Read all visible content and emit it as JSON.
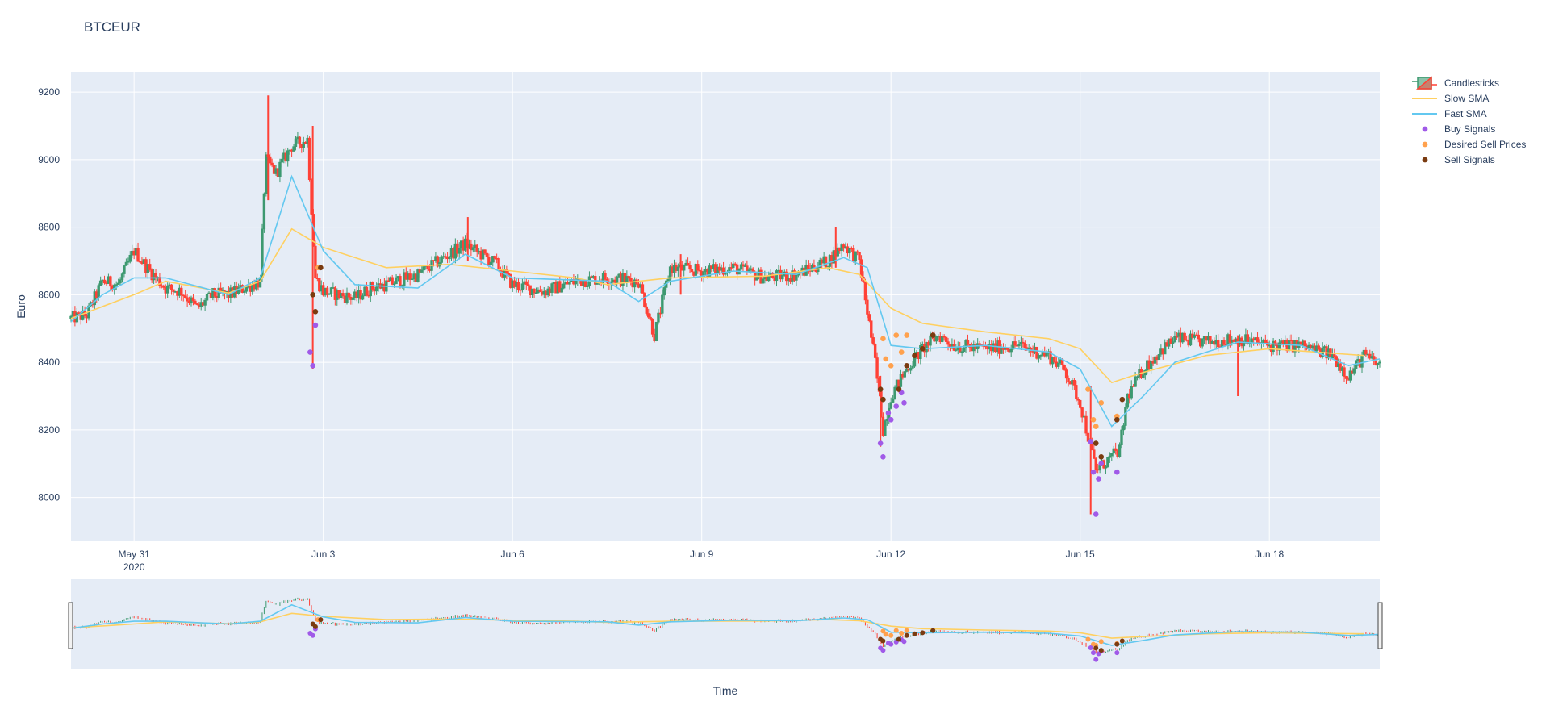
{
  "chart_data": {
    "type": "candlestick",
    "title": "BTCEUR",
    "xlabel": "Time",
    "ylabel": "Euro",
    "ylim": [
      7870,
      9260
    ],
    "xlim": [
      "2020-05-30T00:00",
      "2020-06-19T18:00"
    ],
    "grid": true,
    "legend_position": "top-right",
    "y_ticks": [
      8000,
      8200,
      8400,
      8600,
      8800,
      9000,
      9200
    ],
    "x_ticks": [
      {
        "date": "2020-05-31T00:00",
        "label": "May 31",
        "sublabel": "2020"
      },
      {
        "date": "2020-06-03T00:00",
        "label": "Jun 3",
        "sublabel": ""
      },
      {
        "date": "2020-06-06T00:00",
        "label": "Jun 6",
        "sublabel": ""
      },
      {
        "date": "2020-06-09T00:00",
        "label": "Jun 9",
        "sublabel": ""
      },
      {
        "date": "2020-06-12T00:00",
        "label": "Jun 12",
        "sublabel": ""
      },
      {
        "date": "2020-06-15T00:00",
        "label": "Jun 15",
        "sublabel": ""
      },
      {
        "date": "2020-06-18T00:00",
        "label": "Jun 18",
        "sublabel": ""
      }
    ],
    "colors": {
      "increasing": "#3d9970",
      "decreasing": "#ff4136",
      "slow_sma": "#ffd060",
      "fast_sma": "#63c8f0",
      "buy": "#a05ae8",
      "desired_sell": "#ffa14d",
      "sell": "#7a3b10",
      "plot_bg": "#e5ecf6",
      "grid": "#ffffff"
    },
    "legend": [
      {
        "name": "Candlesticks",
        "kind": "candle"
      },
      {
        "name": "Slow SMA",
        "kind": "line",
        "color": "#ffd060"
      },
      {
        "name": "Fast SMA",
        "kind": "line",
        "color": "#63c8f0"
      },
      {
        "name": "Buy Signals",
        "kind": "marker",
        "color": "#a05ae8"
      },
      {
        "name": "Desired Sell Prices",
        "kind": "marker",
        "color": "#ffa14d"
      },
      {
        "name": "Sell Signals",
        "kind": "marker",
        "color": "#7a3b10"
      }
    ],
    "price_path": [
      [
        "2020-05-30T00:00",
        8530
      ],
      [
        "2020-05-30T06:00",
        8540
      ],
      [
        "2020-05-30T12:00",
        8640
      ],
      [
        "2020-05-30T18:00",
        8630
      ],
      [
        "2020-05-31T00:00",
        8730
      ],
      [
        "2020-05-31T06:00",
        8670
      ],
      [
        "2020-05-31T12:00",
        8620
      ],
      [
        "2020-05-31T18:00",
        8610
      ],
      [
        "2020-06-01T00:00",
        8560
      ],
      [
        "2020-06-01T06:00",
        8600
      ],
      [
        "2020-06-01T12:00",
        8600
      ],
      [
        "2020-06-01T18:00",
        8620
      ],
      [
        "2020-06-02T00:00",
        8640
      ],
      [
        "2020-06-02T02:00",
        9000
      ],
      [
        "2020-06-02T06:00",
        8960
      ],
      [
        "2020-06-02T12:00",
        9040
      ],
      [
        "2020-06-02T18:00",
        9060
      ],
      [
        "2020-06-02T21:00",
        8650
      ],
      [
        "2020-06-03T00:00",
        8610
      ],
      [
        "2020-06-03T06:00",
        8600
      ],
      [
        "2020-06-03T12:00",
        8590
      ],
      [
        "2020-06-03T18:00",
        8620
      ],
      [
        "2020-06-04T00:00",
        8630
      ],
      [
        "2020-06-04T12:00",
        8660
      ],
      [
        "2020-06-05T00:00",
        8720
      ],
      [
        "2020-06-05T06:00",
        8750
      ],
      [
        "2020-06-05T12:00",
        8720
      ],
      [
        "2020-06-05T18:00",
        8690
      ],
      [
        "2020-06-06T00:00",
        8630
      ],
      [
        "2020-06-06T12:00",
        8610
      ],
      [
        "2020-06-07T00:00",
        8640
      ],
      [
        "2020-06-07T12:00",
        8650
      ],
      [
        "2020-06-08T00:00",
        8640
      ],
      [
        "2020-06-08T06:00",
        8480
      ],
      [
        "2020-06-08T12:00",
        8680
      ],
      [
        "2020-06-09T00:00",
        8670
      ],
      [
        "2020-06-09T12:00",
        8680
      ],
      [
        "2020-06-10T00:00",
        8650
      ],
      [
        "2020-06-10T12:00",
        8660
      ],
      [
        "2020-06-11T00:00",
        8700
      ],
      [
        "2020-06-11T06:00",
        8750
      ],
      [
        "2020-06-11T12:00",
        8700
      ],
      [
        "2020-06-11T18:00",
        8400
      ],
      [
        "2020-06-11T21:00",
        8200
      ],
      [
        "2020-06-12T00:00",
        8300
      ],
      [
        "2020-06-12T06:00",
        8380
      ],
      [
        "2020-06-12T12:00",
        8440
      ],
      [
        "2020-06-12T18:00",
        8480
      ],
      [
        "2020-06-13T00:00",
        8450
      ],
      [
        "2020-06-13T12:00",
        8440
      ],
      [
        "2020-06-14T00:00",
        8450
      ],
      [
        "2020-06-14T12:00",
        8420
      ],
      [
        "2020-06-14T18:00",
        8380
      ],
      [
        "2020-06-15T00:00",
        8280
      ],
      [
        "2020-06-15T06:00",
        8080
      ],
      [
        "2020-06-15T12:00",
        8120
      ],
      [
        "2020-06-15T15:00",
        8140
      ],
      [
        "2020-06-15T18:00",
        8300
      ],
      [
        "2020-06-16T00:00",
        8380
      ],
      [
        "2020-06-16T06:00",
        8430
      ],
      [
        "2020-06-16T12:00",
        8470
      ],
      [
        "2020-06-17T00:00",
        8460
      ],
      [
        "2020-06-17T12:00",
        8470
      ],
      [
        "2020-06-18T00:00",
        8450
      ],
      [
        "2020-06-18T12:00",
        8450
      ],
      [
        "2020-06-19T00:00",
        8420
      ],
      [
        "2020-06-19T06:00",
        8360
      ],
      [
        "2020-06-19T12:00",
        8420
      ],
      [
        "2020-06-19T18:00",
        8390
      ]
    ],
    "spikes": [
      [
        "2020-06-02T03:00",
        9190,
        8880
      ],
      [
        "2020-06-02T20:00",
        9100,
        8380
      ],
      [
        "2020-06-05T07:00",
        8830,
        8700
      ],
      [
        "2020-06-08T16:00",
        8720,
        8600
      ],
      [
        "2020-06-11T03:00",
        8800,
        8680
      ],
      [
        "2020-06-11T20:00",
        8360,
        8150
      ],
      [
        "2020-06-15T04:00",
        8330,
        7950
      ],
      [
        "2020-06-17T12:00",
        8480,
        8300
      ]
    ],
    "slow_sma": [
      [
        "2020-05-30T00:00",
        8530
      ],
      [
        "2020-05-31T00:00",
        8600
      ],
      [
        "2020-05-31T12:00",
        8640
      ],
      [
        "2020-06-01T12:00",
        8605
      ],
      [
        "2020-06-02T00:00",
        8640
      ],
      [
        "2020-06-02T12:00",
        8795
      ],
      [
        "2020-06-03T00:00",
        8740
      ],
      [
        "2020-06-04T00:00",
        8680
      ],
      [
        "2020-06-05T00:00",
        8690
      ],
      [
        "2020-06-06T00:00",
        8670
      ],
      [
        "2020-06-07T00:00",
        8650
      ],
      [
        "2020-06-07T12:00",
        8630
      ],
      [
        "2020-06-08T12:00",
        8650
      ],
      [
        "2020-06-10T00:00",
        8655
      ],
      [
        "2020-06-11T00:00",
        8680
      ],
      [
        "2020-06-11T12:00",
        8660
      ],
      [
        "2020-06-12T00:00",
        8560
      ],
      [
        "2020-06-12T12:00",
        8515
      ],
      [
        "2020-06-13T12:00",
        8490
      ],
      [
        "2020-06-14T12:00",
        8470
      ],
      [
        "2020-06-15T00:00",
        8440
      ],
      [
        "2020-06-15T12:00",
        8340
      ],
      [
        "2020-06-16T00:00",
        8370
      ],
      [
        "2020-06-17T00:00",
        8420
      ],
      [
        "2020-06-18T00:00",
        8440
      ],
      [
        "2020-06-19T12:00",
        8420
      ]
    ],
    "fast_sma": [
      [
        "2020-05-30T00:00",
        8520
      ],
      [
        "2020-05-30T12:00",
        8600
      ],
      [
        "2020-05-31T00:00",
        8650
      ],
      [
        "2020-05-31T12:00",
        8650
      ],
      [
        "2020-06-01T12:00",
        8600
      ],
      [
        "2020-06-02T00:00",
        8650
      ],
      [
        "2020-06-02T12:00",
        8950
      ],
      [
        "2020-06-03T00:00",
        8730
      ],
      [
        "2020-06-03T12:00",
        8630
      ],
      [
        "2020-06-04T12:00",
        8620
      ],
      [
        "2020-06-05T06:00",
        8720
      ],
      [
        "2020-06-06T00:00",
        8650
      ],
      [
        "2020-06-07T12:00",
        8640
      ],
      [
        "2020-06-08T00:00",
        8580
      ],
      [
        "2020-06-08T12:00",
        8640
      ],
      [
        "2020-06-09T12:00",
        8670
      ],
      [
        "2020-06-10T12:00",
        8660
      ],
      [
        "2020-06-11T06:00",
        8710
      ],
      [
        "2020-06-11T15:00",
        8680
      ],
      [
        "2020-06-12T00:00",
        8450
      ],
      [
        "2020-06-12T12:00",
        8440
      ],
      [
        "2020-06-13T12:00",
        8450
      ],
      [
        "2020-06-14T12:00",
        8430
      ],
      [
        "2020-06-15T00:00",
        8380
      ],
      [
        "2020-06-15T12:00",
        8210
      ],
      [
        "2020-06-16T00:00",
        8300
      ],
      [
        "2020-06-16T12:00",
        8400
      ],
      [
        "2020-06-17T12:00",
        8460
      ],
      [
        "2020-06-18T12:00",
        8450
      ],
      [
        "2020-06-19T06:00",
        8390
      ],
      [
        "2020-06-19T18:00",
        8410
      ]
    ],
    "buy_signals": [
      [
        "2020-06-02T19:00",
        8430
      ],
      [
        "2020-06-02T20:00",
        8390
      ],
      [
        "2020-06-02T21:00",
        8510
      ],
      [
        "2020-06-11T20:00",
        8160
      ],
      [
        "2020-06-11T21:00",
        8120
      ],
      [
        "2020-06-11T23:00",
        8250
      ],
      [
        "2020-06-12T00:00",
        8230
      ],
      [
        "2020-06-12T02:00",
        8270
      ],
      [
        "2020-06-12T04:00",
        8310
      ],
      [
        "2020-06-12T05:00",
        8280
      ],
      [
        "2020-06-15T04:00",
        8165
      ],
      [
        "2020-06-15T05:00",
        8075
      ],
      [
        "2020-06-15T06:00",
        7950
      ],
      [
        "2020-06-15T07:00",
        8055
      ],
      [
        "2020-06-15T08:00",
        8100
      ],
      [
        "2020-06-15T14:00",
        8075
      ]
    ],
    "desired_sell": [
      [
        "2020-06-02T22:00",
        8680
      ],
      [
        "2020-06-11T21:00",
        8470
      ],
      [
        "2020-06-11T22:00",
        8410
      ],
      [
        "2020-06-12T00:00",
        8390
      ],
      [
        "2020-06-12T02:00",
        8480
      ],
      [
        "2020-06-12T04:00",
        8430
      ],
      [
        "2020-06-12T06:00",
        8480
      ],
      [
        "2020-06-15T03:00",
        8320
      ],
      [
        "2020-06-15T05:00",
        8230
      ],
      [
        "2020-06-15T06:00",
        8210
      ],
      [
        "2020-06-15T08:00",
        8280
      ],
      [
        "2020-06-15T14:00",
        8240
      ]
    ],
    "sell_signals": [
      [
        "2020-06-02T20:00",
        8600
      ],
      [
        "2020-06-02T21:00",
        8550
      ],
      [
        "2020-06-02T23:00",
        8680
      ],
      [
        "2020-06-11T20:00",
        8320
      ],
      [
        "2020-06-11T21:00",
        8290
      ],
      [
        "2020-06-12T03:00",
        8320
      ],
      [
        "2020-06-12T06:00",
        8390
      ],
      [
        "2020-06-12T09:00",
        8420
      ],
      [
        "2020-06-12T12:00",
        8440
      ],
      [
        "2020-06-12T16:00",
        8480
      ],
      [
        "2020-06-15T06:00",
        8160
      ],
      [
        "2020-06-15T08:00",
        8120
      ],
      [
        "2020-06-15T14:00",
        8230
      ],
      [
        "2020-06-15T16:00",
        8290
      ]
    ]
  }
}
